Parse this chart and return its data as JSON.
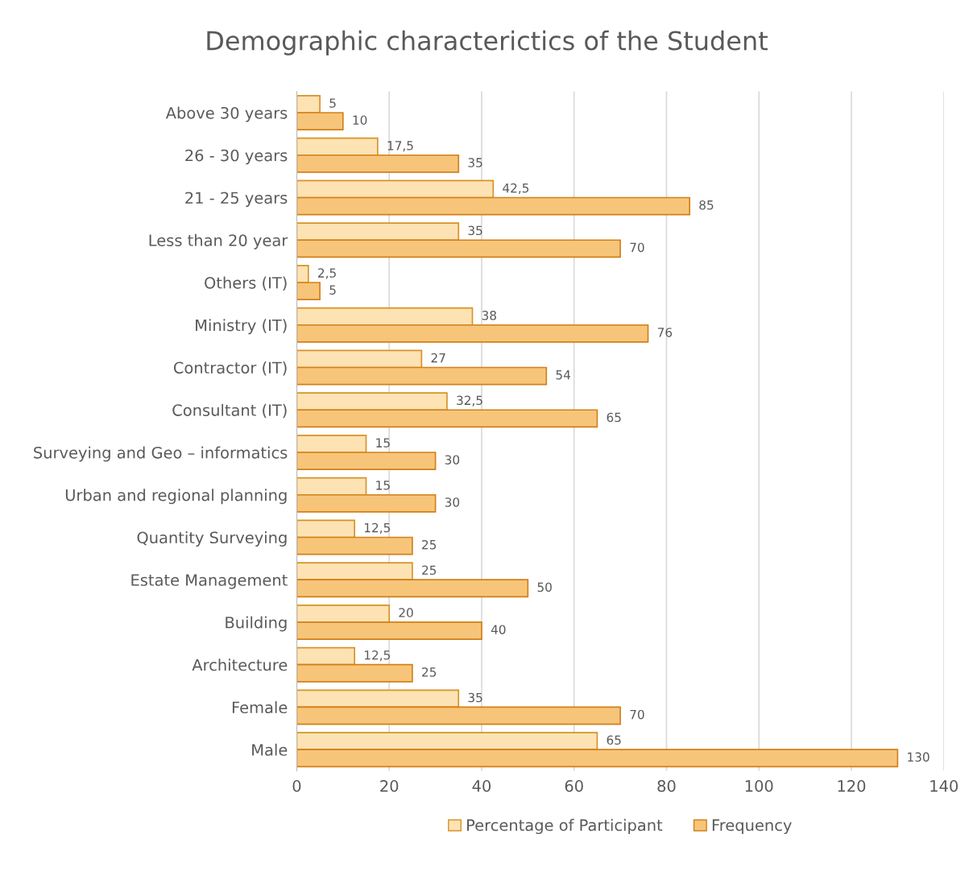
{
  "chart_data": {
    "type": "bar",
    "orientation": "horizontal",
    "title": "Demographic characterictics of the Student",
    "categories": [
      "Above 30 years",
      "26 - 30 years",
      "21 - 25 years",
      "Less than 20 year",
      "Others (IT)",
      "Ministry (IT)",
      "Contractor (IT)",
      "Consultant (IT)",
      "Surveying and Geo – informatics",
      "Urban and regional planning",
      "Quantity Surveying",
      "Estate Management",
      "Building",
      "Architecture",
      "Female",
      "Male"
    ],
    "series": [
      {
        "name": "Percentage of Participant",
        "color": "#fde2b3",
        "values": [
          5,
          17.5,
          42.5,
          35,
          2.5,
          38,
          27,
          32.5,
          15,
          15,
          12.5,
          25,
          20,
          12.5,
          35,
          65
        ],
        "value_labels": [
          "5",
          "17,5",
          "42,5",
          "35",
          "2,5",
          "38",
          "27",
          "32,5",
          "15",
          "15",
          "12,5",
          "25",
          "20",
          "12,5",
          "35",
          "65"
        ]
      },
      {
        "name": "Frequency",
        "color": "#f7c57a",
        "values": [
          10,
          35,
          85,
          70,
          5,
          76,
          54,
          65,
          30,
          30,
          25,
          50,
          40,
          25,
          70,
          130
        ],
        "value_labels": [
          "10",
          "35",
          "85",
          "70",
          "5",
          "76",
          "54",
          "65",
          "30",
          "30",
          "25",
          "50",
          "40",
          "25",
          "70",
          "130"
        ]
      }
    ],
    "xlim": [
      0,
      140
    ],
    "xticks": [
      0,
      20,
      40,
      60,
      80,
      100,
      120,
      140
    ],
    "grid": "x",
    "legend": "bottom"
  }
}
